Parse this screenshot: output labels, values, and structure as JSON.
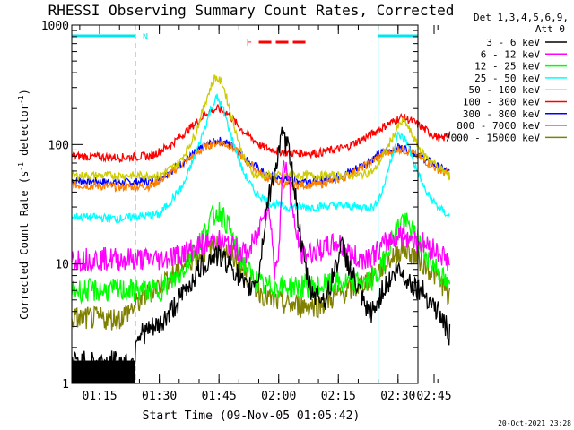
{
  "chart_data": {
    "type": "line",
    "title": "RHESSI Observing Summary Count Rates, Corrected",
    "xlabel": "Start Time (09-Nov-05 01:05:42)",
    "ylabel_parts": [
      "Corrected Count Rate (s",
      "-1",
      " detector",
      "-1",
      ")"
    ],
    "ylog": true,
    "ylim": [
      1,
      1000
    ],
    "y_ticks": [
      {
        "v": 1,
        "label": "1"
      },
      {
        "v": 10,
        "label": "10"
      },
      {
        "v": 100,
        "label": "100"
      },
      {
        "v": 1000,
        "label": "1000"
      }
    ],
    "xlim_min": [
      8,
      95
    ],
    "x_ticks": [
      {
        "t": 15,
        "label": "01:15"
      },
      {
        "t": 30,
        "label": "01:30"
      },
      {
        "t": 45,
        "label": "01:45"
      },
      {
        "t": 60,
        "label": "02:00"
      },
      {
        "t": 75,
        "label": "02:15"
      },
      {
        "t": 90,
        "label": "02:30"
      },
      {
        "t": 105,
        "label": "02:45"
      }
    ],
    "legend_header": [
      "Det 1,3,4,5,6,9,",
      "Att 0"
    ],
    "legend_position": "right",
    "footer_date": "20-Oct-2021 23:28",
    "night_marks": {
      "label": "N",
      "color": "#00e5ee",
      "intervals": [
        [
          8,
          24
        ],
        [
          85,
          104
        ]
      ]
    },
    "flare_mark": {
      "label": "F",
      "color": "#ff0000",
      "t_start": 55,
      "t_end": 67
    },
    "series": [
      {
        "name": "3 - 6 keV",
        "color": "#000000",
        "points": [
          [
            8,
            1.5
          ],
          [
            23.9,
            1.5
          ],
          [
            24,
            2.5
          ],
          [
            30,
            3
          ],
          [
            35,
            5
          ],
          [
            40,
            9
          ],
          [
            44,
            12
          ],
          [
            48,
            10
          ],
          [
            52,
            6
          ],
          [
            55,
            8
          ],
          [
            57,
            30
          ],
          [
            59,
            60
          ],
          [
            61,
            120
          ],
          [
            63,
            80
          ],
          [
            66,
            12
          ],
          [
            68,
            6
          ],
          [
            72,
            5
          ],
          [
            74,
            9
          ],
          [
            76,
            14
          ],
          [
            78,
            9
          ],
          [
            80,
            6
          ],
          [
            82,
            4
          ],
          [
            84,
            4
          ],
          [
            86,
            6
          ],
          [
            90,
            9
          ],
          [
            93,
            7
          ],
          [
            96,
            6
          ],
          [
            98,
            5
          ],
          [
            100,
            4
          ],
          [
            102,
            3
          ],
          [
            103,
            2.5
          ]
        ]
      },
      {
        "name": "6 - 12 keV",
        "color": "#ff00ff",
        "points": [
          [
            8,
            11
          ],
          [
            20,
            11
          ],
          [
            25,
            11
          ],
          [
            30,
            11
          ],
          [
            35,
            12
          ],
          [
            40,
            14
          ],
          [
            44,
            16
          ],
          [
            48,
            14
          ],
          [
            52,
            12
          ],
          [
            55,
            18
          ],
          [
            56,
            30
          ],
          [
            58,
            25
          ],
          [
            59,
            8
          ],
          [
            60,
            14
          ],
          [
            61,
            60
          ],
          [
            62,
            70
          ],
          [
            64,
            20
          ],
          [
            66,
            12
          ],
          [
            70,
            13
          ],
          [
            75,
            15
          ],
          [
            78,
            12
          ],
          [
            80,
            11
          ],
          [
            84,
            12
          ],
          [
            88,
            16
          ],
          [
            91,
            18
          ],
          [
            94,
            16
          ],
          [
            98,
            14
          ],
          [
            101,
            12
          ],
          [
            103,
            10
          ]
        ]
      },
      {
        "name": "12 - 25 keV",
        "color": "#00ff00",
        "points": [
          [
            8,
            6
          ],
          [
            20,
            6
          ],
          [
            30,
            6
          ],
          [
            35,
            8
          ],
          [
            40,
            15
          ],
          [
            43,
            24
          ],
          [
            45,
            28
          ],
          [
            47,
            22
          ],
          [
            50,
            12
          ],
          [
            53,
            8
          ],
          [
            56,
            6.5
          ],
          [
            70,
            6.5
          ],
          [
            78,
            7
          ],
          [
            82,
            7
          ],
          [
            85,
            8
          ],
          [
            88,
            15
          ],
          [
            91,
            24
          ],
          [
            94,
            18
          ],
          [
            97,
            12
          ],
          [
            100,
            9
          ],
          [
            103,
            6
          ]
        ]
      },
      {
        "name": "25 - 50 keV",
        "color": "#00ffff",
        "points": [
          [
            8,
            25
          ],
          [
            20,
            24
          ],
          [
            30,
            26
          ],
          [
            36,
            45
          ],
          [
            40,
            100
          ],
          [
            43,
            200
          ],
          [
            44.5,
            250
          ],
          [
            46,
            200
          ],
          [
            48,
            120
          ],
          [
            51,
            60
          ],
          [
            54,
            40
          ],
          [
            58,
            32
          ],
          [
            62,
            30
          ],
          [
            68,
            30
          ],
          [
            75,
            31
          ],
          [
            80,
            30
          ],
          [
            84,
            30
          ],
          [
            86,
            40
          ],
          [
            88,
            70
          ],
          [
            90,
            120
          ],
          [
            92,
            110
          ],
          [
            94,
            70
          ],
          [
            97,
            40
          ],
          [
            100,
            30
          ],
          [
            103,
            25
          ]
        ]
      },
      {
        "name": "50 - 100 keV",
        "color": "#cccc00",
        "points": [
          [
            8,
            55
          ],
          [
            20,
            55
          ],
          [
            30,
            55
          ],
          [
            35,
            70
          ],
          [
            39,
            120
          ],
          [
            42,
            250
          ],
          [
            44,
            370
          ],
          [
            46,
            320
          ],
          [
            48,
            180
          ],
          [
            51,
            80
          ],
          [
            54,
            55
          ],
          [
            58,
            55
          ],
          [
            70,
            55
          ],
          [
            80,
            55
          ],
          [
            84,
            60
          ],
          [
            87,
            90
          ],
          [
            90,
            140
          ],
          [
            91.5,
            160
          ],
          [
            93,
            130
          ],
          [
            96,
            85
          ],
          [
            99,
            70
          ],
          [
            102,
            58
          ],
          [
            103,
            55
          ]
        ]
      },
      {
        "name": "100 - 300 keV",
        "color": "#ff0000",
        "points": [
          [
            8,
            80
          ],
          [
            20,
            78
          ],
          [
            28,
            80
          ],
          [
            33,
            100
          ],
          [
            38,
            140
          ],
          [
            42,
            185
          ],
          [
            44.5,
            200
          ],
          [
            47,
            185
          ],
          [
            51,
            130
          ],
          [
            56,
            95
          ],
          [
            62,
            85
          ],
          [
            70,
            85
          ],
          [
            77,
            95
          ],
          [
            83,
            120
          ],
          [
            87,
            145
          ],
          [
            91,
            170
          ],
          [
            94,
            155
          ],
          [
            98,
            125
          ],
          [
            101,
            110
          ],
          [
            103,
            125
          ]
        ]
      },
      {
        "name": "300 - 800 keV",
        "color": "#0000ff",
        "points": [
          [
            8,
            50
          ],
          [
            20,
            48
          ],
          [
            28,
            49
          ],
          [
            33,
            60
          ],
          [
            38,
            80
          ],
          [
            42,
            100
          ],
          [
            45,
            108
          ],
          [
            48,
            100
          ],
          [
            52,
            75
          ],
          [
            57,
            55
          ],
          [
            62,
            50
          ],
          [
            70,
            50
          ],
          [
            76,
            55
          ],
          [
            82,
            70
          ],
          [
            86,
            85
          ],
          [
            90,
            95
          ],
          [
            93,
            90
          ],
          [
            97,
            75
          ],
          [
            100,
            65
          ],
          [
            103,
            58
          ]
        ]
      },
      {
        "name": "800 - 7000 keV",
        "color": "#ff8000",
        "points": [
          [
            8,
            46
          ],
          [
            20,
            44
          ],
          [
            28,
            45
          ],
          [
            33,
            58
          ],
          [
            38,
            78
          ],
          [
            42,
            97
          ],
          [
            45,
            105
          ],
          [
            48,
            97
          ],
          [
            52,
            72
          ],
          [
            57,
            52
          ],
          [
            62,
            46
          ],
          [
            70,
            46
          ],
          [
            76,
            52
          ],
          [
            82,
            67
          ],
          [
            86,
            82
          ],
          [
            90,
            92
          ],
          [
            93,
            87
          ],
          [
            97,
            72
          ],
          [
            100,
            62
          ],
          [
            103,
            55
          ]
        ]
      },
      {
        "name": "7000 - 15000 keV",
        "color": "#808000",
        "points": [
          [
            8,
            3.5
          ],
          [
            20,
            3.5
          ],
          [
            24,
            4.5
          ],
          [
            28,
            6
          ],
          [
            33,
            8
          ],
          [
            38,
            11
          ],
          [
            42,
            13
          ],
          [
            45,
            14
          ],
          [
            48,
            12
          ],
          [
            52,
            8
          ],
          [
            55,
            6
          ],
          [
            58,
            5
          ],
          [
            63,
            4.5
          ],
          [
            70,
            4.5
          ],
          [
            75,
            5.5
          ],
          [
            80,
            6.5
          ],
          [
            84,
            8
          ],
          [
            88,
            11
          ],
          [
            91,
            13.5
          ],
          [
            94,
            12
          ],
          [
            98,
            9
          ],
          [
            101,
            7
          ],
          [
            103,
            5
          ]
        ]
      }
    ]
  }
}
